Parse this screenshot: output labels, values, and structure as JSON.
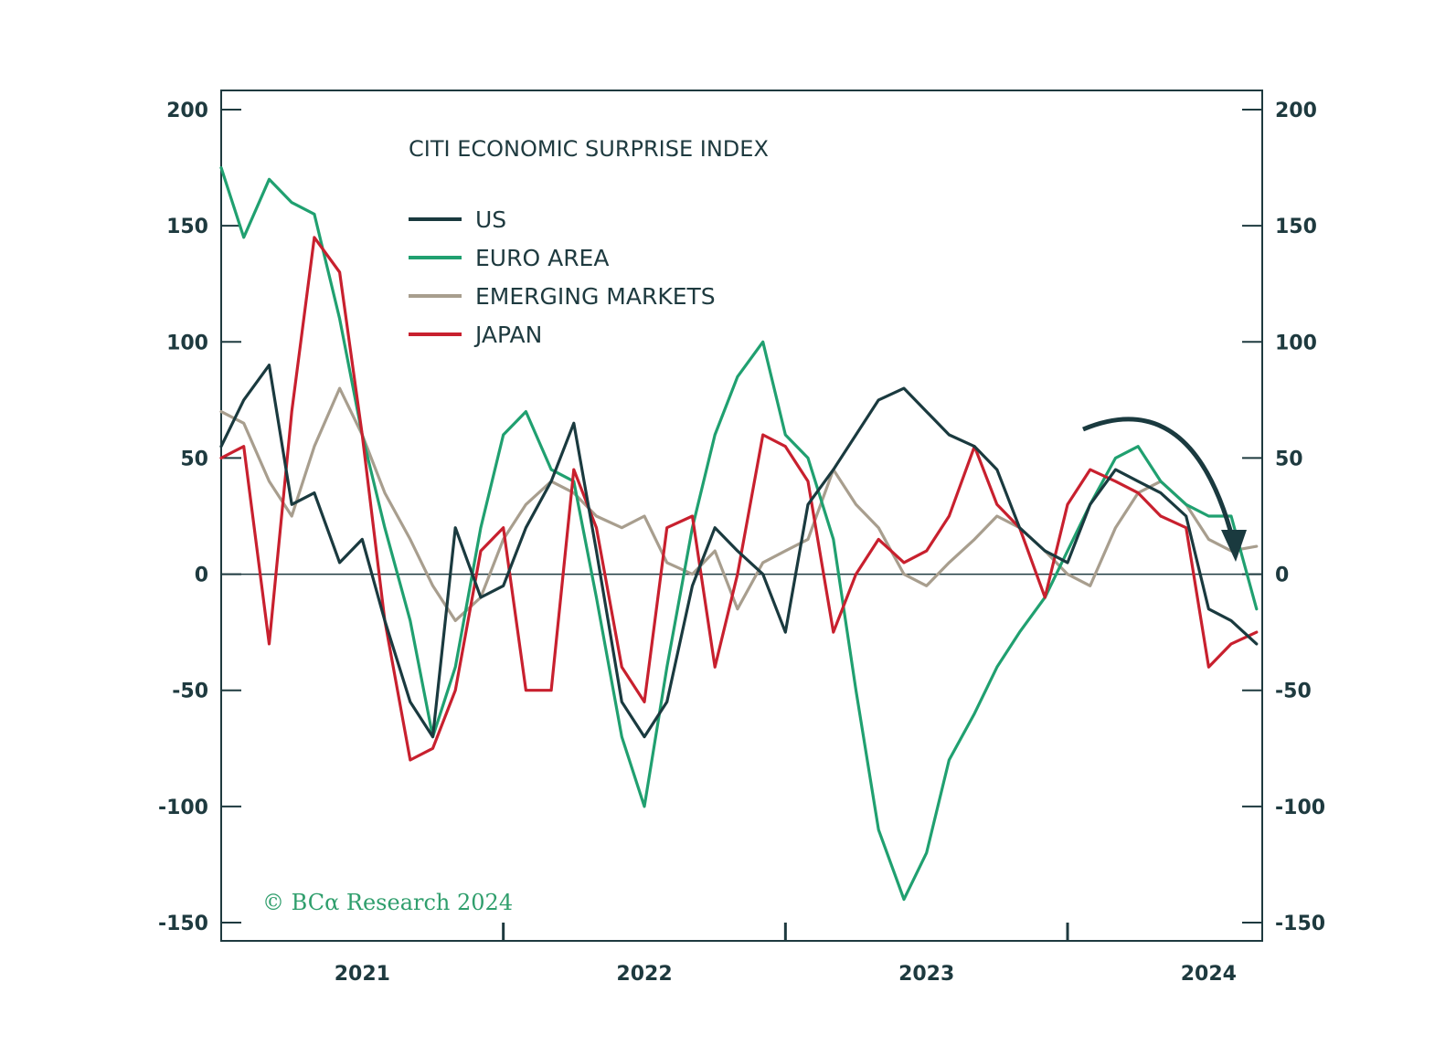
{
  "chart_data": {
    "type": "line",
    "title": "CITI ECONOMIC SURPRISE INDEX",
    "copyright": "© BCα Research 2024",
    "ylim": [
      -150,
      200
    ],
    "yticks": [
      200,
      150,
      100,
      50,
      0,
      -50,
      -100,
      -150
    ],
    "ytick_labels": [
      "200",
      "150",
      "100",
      "50",
      "0",
      "-50",
      "-100",
      "-150"
    ],
    "xlim": [
      2020.5,
      2024.19
    ],
    "xticks": [
      2021.5,
      2022.5,
      2023.5
    ],
    "xtick_labels": [
      {
        "label": "2021",
        "x": 2021.0
      },
      {
        "label": "2022",
        "x": 2022.0
      },
      {
        "label": "2023",
        "x": 2023.0
      },
      {
        "label": "2024",
        "x": 2024.0
      }
    ],
    "grid": false,
    "legend": "top-left",
    "zero_line": true,
    "annotation": "downward-arrow",
    "series": [
      {
        "name": "US",
        "color": "#1a3a3f",
        "x": [
          2020.5,
          2020.58,
          2020.67,
          2020.75,
          2020.83,
          2020.92,
          2021.0,
          2021.08,
          2021.17,
          2021.25,
          2021.33,
          2021.42,
          2021.5,
          2021.58,
          2021.67,
          2021.75,
          2021.83,
          2021.92,
          2022.0,
          2022.08,
          2022.17,
          2022.25,
          2022.33,
          2022.42,
          2022.5,
          2022.58,
          2022.67,
          2022.75,
          2022.83,
          2022.92,
          2023.0,
          2023.08,
          2023.17,
          2023.25,
          2023.33,
          2023.42,
          2023.5,
          2023.58,
          2023.67,
          2023.75,
          2023.83,
          2023.92,
          2024.0,
          2024.08,
          2024.17
        ],
        "values": [
          55,
          75,
          90,
          30,
          35,
          5,
          15,
          -20,
          -55,
          -70,
          20,
          -10,
          -5,
          20,
          40,
          65,
          10,
          -55,
          -70,
          -55,
          -5,
          20,
          10,
          0,
          -25,
          30,
          45,
          60,
          75,
          80,
          70,
          60,
          55,
          45,
          20,
          10,
          5,
          30,
          45,
          40,
          35,
          25,
          -15,
          -20,
          -30
        ]
      },
      {
        "name": "EURO AREA",
        "color": "#20a070",
        "x": [
          2020.5,
          2020.58,
          2020.67,
          2020.75,
          2020.83,
          2020.92,
          2021.0,
          2021.08,
          2021.17,
          2021.25,
          2021.33,
          2021.42,
          2021.5,
          2021.58,
          2021.67,
          2021.75,
          2021.83,
          2021.92,
          2022.0,
          2022.08,
          2022.17,
          2022.25,
          2022.33,
          2022.42,
          2022.5,
          2022.58,
          2022.67,
          2022.75,
          2022.83,
          2022.92,
          2023.0,
          2023.08,
          2023.17,
          2023.25,
          2023.33,
          2023.42,
          2023.5,
          2023.58,
          2023.67,
          2023.75,
          2023.83,
          2023.92,
          2024.0,
          2024.08,
          2024.17
        ],
        "values": [
          175,
          145,
          170,
          160,
          155,
          110,
          60,
          20,
          -20,
          -70,
          -40,
          20,
          60,
          70,
          45,
          40,
          -10,
          -70,
          -100,
          -40,
          20,
          60,
          85,
          100,
          60,
          50,
          15,
          -50,
          -110,
          -140,
          -120,
          -80,
          -60,
          -40,
          -25,
          -10,
          10,
          30,
          50,
          55,
          40,
          30,
          25,
          25,
          -15
        ]
      },
      {
        "name": "EMERGING MARKETS",
        "color": "#a89e8e",
        "x": [
          2020.5,
          2020.58,
          2020.67,
          2020.75,
          2020.83,
          2020.92,
          2021.0,
          2021.08,
          2021.17,
          2021.25,
          2021.33,
          2021.42,
          2021.5,
          2021.58,
          2021.67,
          2021.75,
          2021.83,
          2021.92,
          2022.0,
          2022.08,
          2022.17,
          2022.25,
          2022.33,
          2022.42,
          2022.5,
          2022.58,
          2022.67,
          2022.75,
          2022.83,
          2022.92,
          2023.0,
          2023.08,
          2023.17,
          2023.25,
          2023.33,
          2023.42,
          2023.5,
          2023.58,
          2023.67,
          2023.75,
          2023.83,
          2023.92,
          2024.0,
          2024.08,
          2024.17
        ],
        "values": [
          70,
          65,
          40,
          25,
          55,
          80,
          60,
          35,
          15,
          -5,
          -20,
          -10,
          15,
          30,
          40,
          35,
          25,
          20,
          25,
          5,
          0,
          10,
          -15,
          5,
          10,
          15,
          45,
          30,
          20,
          0,
          -5,
          5,
          15,
          25,
          20,
          10,
          0,
          -5,
          20,
          35,
          40,
          30,
          15,
          10,
          12
        ]
      },
      {
        "name": "JAPAN",
        "color": "#c8202e",
        "x": [
          2020.5,
          2020.58,
          2020.67,
          2020.75,
          2020.83,
          2020.92,
          2021.0,
          2021.08,
          2021.17,
          2021.25,
          2021.33,
          2021.42,
          2021.5,
          2021.58,
          2021.67,
          2021.75,
          2021.83,
          2021.92,
          2022.0,
          2022.08,
          2022.17,
          2022.25,
          2022.33,
          2022.42,
          2022.5,
          2022.58,
          2022.67,
          2022.75,
          2022.83,
          2022.92,
          2023.0,
          2023.08,
          2023.17,
          2023.25,
          2023.33,
          2023.42,
          2023.5,
          2023.58,
          2023.67,
          2023.75,
          2023.83,
          2023.92,
          2024.0,
          2024.08,
          2024.17
        ],
        "values": [
          50,
          55,
          -30,
          70,
          145,
          130,
          60,
          -20,
          -80,
          -75,
          -50,
          10,
          20,
          -50,
          -50,
          45,
          20,
          -40,
          -55,
          20,
          25,
          -40,
          0,
          60,
          55,
          40,
          -25,
          0,
          15,
          5,
          10,
          25,
          55,
          30,
          20,
          -10,
          30,
          45,
          40,
          35,
          25,
          20,
          -40,
          -30,
          -25
        ]
      }
    ]
  }
}
